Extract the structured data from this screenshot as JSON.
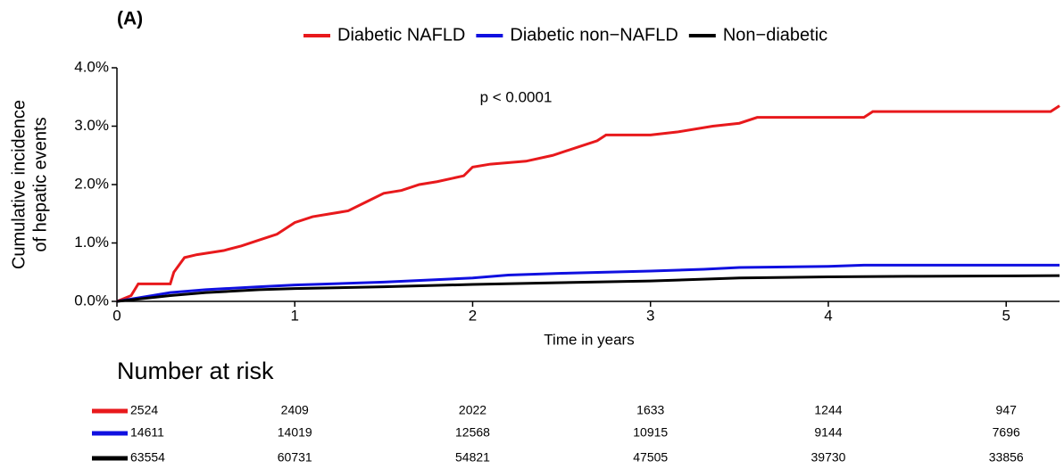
{
  "chart_data": {
    "type": "line",
    "panel_label": "(A)",
    "ylabel": [
      "Cumulative incidence",
      "of hepatic events"
    ],
    "xlabel": "Time in years",
    "annotation": "p < 0.0001",
    "xlim": [
      0,
      5.3
    ],
    "xticks": [
      0,
      1,
      2,
      3,
      4,
      5
    ],
    "ylim": [
      0,
      4
    ],
    "yticks": [
      {
        "value": 0,
        "label": "0.0%"
      },
      {
        "value": 1,
        "label": "1.0%"
      },
      {
        "value": 2,
        "label": "2.0%"
      },
      {
        "value": 3,
        "label": "3.0%"
      },
      {
        "value": 4,
        "label": "4.0%"
      }
    ],
    "legend": "top",
    "risk_title": "Number at risk",
    "series": [
      {
        "name": "Diabetic NAFLD",
        "color": "#e8191c",
        "x": [
          0,
          0.08,
          0.1,
          0.12,
          0.3,
          0.32,
          0.38,
          0.45,
          0.6,
          0.7,
          0.8,
          0.9,
          1.0,
          1.1,
          1.2,
          1.3,
          1.4,
          1.5,
          1.6,
          1.7,
          1.8,
          1.95,
          2.0,
          2.1,
          2.3,
          2.45,
          2.6,
          2.7,
          2.75,
          3.0,
          3.15,
          3.35,
          3.5,
          3.6,
          4.2,
          4.25,
          5.25,
          5.3
        ],
        "values": [
          0,
          0.1,
          0.2,
          0.3,
          0.3,
          0.5,
          0.75,
          0.8,
          0.87,
          0.95,
          1.05,
          1.15,
          1.35,
          1.45,
          1.5,
          1.55,
          1.7,
          1.85,
          1.9,
          2.0,
          2.05,
          2.15,
          2.3,
          2.35,
          2.4,
          2.5,
          2.65,
          2.75,
          2.85,
          2.85,
          2.9,
          3.0,
          3.05,
          3.15,
          3.15,
          3.25,
          3.25,
          3.35
        ],
        "at_risk": [
          2524,
          2409,
          2022,
          1633,
          1244,
          947
        ]
      },
      {
        "name": "Diabetic non−NAFLD",
        "color": "#1010e0",
        "x": [
          0,
          0.2,
          0.3,
          0.5,
          0.8,
          1.0,
          1.5,
          2.0,
          2.2,
          2.5,
          3.0,
          3.3,
          3.5,
          4.0,
          4.2,
          5.3
        ],
        "values": [
          0,
          0.1,
          0.15,
          0.2,
          0.25,
          0.28,
          0.33,
          0.4,
          0.45,
          0.48,
          0.52,
          0.55,
          0.58,
          0.6,
          0.62,
          0.62
        ],
        "at_risk": [
          14611,
          14019,
          12568,
          10915,
          9144,
          7696
        ]
      },
      {
        "name": "Non−diabetic",
        "color": "#000000",
        "x": [
          0,
          0.3,
          0.5,
          0.8,
          1.0,
          1.5,
          2.0,
          2.5,
          3.0,
          3.5,
          4.0,
          4.5,
          5.3
        ],
        "values": [
          0,
          0.1,
          0.15,
          0.2,
          0.22,
          0.25,
          0.29,
          0.32,
          0.35,
          0.4,
          0.42,
          0.43,
          0.44
        ],
        "at_risk": [
          63554,
          60731,
          54821,
          47505,
          39730,
          33856
        ]
      }
    ]
  }
}
